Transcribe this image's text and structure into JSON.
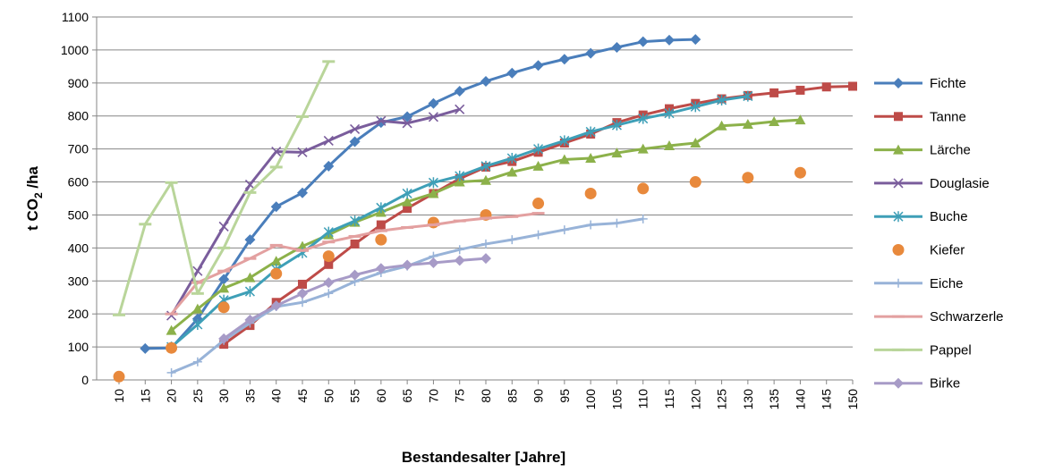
{
  "chart_data": {
    "type": "line",
    "title": "",
    "xlabel": "Bestandesalter [Jahre]",
    "ylabel_main": "t CO",
    "ylabel_sub": "2",
    "ylabel_rest": " /ha",
    "categories": [
      "10",
      "15",
      "20",
      "25",
      "30",
      "35",
      "40",
      "45",
      "50",
      "55",
      "60",
      "65",
      "70",
      "75",
      "80",
      "85",
      "90",
      "95",
      "100",
      "105",
      "110",
      "115",
      "120",
      "125",
      "130",
      "135",
      "140",
      "145",
      "150"
    ],
    "yticks": [
      0,
      100,
      200,
      300,
      400,
      500,
      600,
      700,
      800,
      900,
      1000,
      1100
    ],
    "ylim": [
      0,
      1100
    ],
    "grid": "horizontal",
    "legend_position": "right",
    "series": [
      {
        "name": "Fichte",
        "color": "#4a7ebb",
        "marker": "diamond",
        "x": [
          15,
          20,
          25,
          30,
          35,
          40,
          45,
          50,
          55,
          60,
          65,
          70,
          75,
          80,
          85,
          90,
          95,
          100,
          105,
          110,
          115,
          120
        ],
        "y": [
          95,
          97,
          185,
          305,
          425,
          525,
          567,
          648,
          722,
          780,
          798,
          838,
          875,
          905,
          930,
          953,
          972,
          990,
          1008,
          1025,
          1030,
          1032
        ]
      },
      {
        "name": "Tanne",
        "color": "#be4b48",
        "marker": "square",
        "x": [
          30,
          35,
          40,
          45,
          50,
          55,
          60,
          65,
          70,
          75,
          80,
          85,
          90,
          95,
          100,
          105,
          110,
          115,
          120,
          125,
          130,
          135,
          140,
          145,
          150
        ],
        "y": [
          108,
          165,
          235,
          290,
          350,
          412,
          470,
          520,
          565,
          610,
          645,
          662,
          690,
          718,
          745,
          780,
          803,
          822,
          838,
          852,
          862,
          870,
          878,
          888,
          890
        ]
      },
      {
        "name": "Lärche",
        "color": "#8cb14a",
        "marker": "triangle",
        "x": [
          20,
          25,
          30,
          35,
          40,
          45,
          50,
          55,
          60,
          65,
          70,
          75,
          80,
          85,
          90,
          95,
          100,
          105,
          110,
          115,
          120,
          125,
          130,
          135,
          140
        ],
        "y": [
          150,
          215,
          278,
          310,
          360,
          405,
          440,
          478,
          508,
          540,
          565,
          600,
          605,
          630,
          648,
          668,
          672,
          688,
          700,
          710,
          718,
          770,
          775,
          783,
          788
        ]
      },
      {
        "name": "Douglasie",
        "color": "#7a5d9c",
        "marker": "x",
        "x": [
          20,
          25,
          30,
          35,
          40,
          45,
          50,
          55,
          60,
          65,
          70,
          75
        ],
        "y": [
          195,
          330,
          465,
          592,
          692,
          690,
          725,
          760,
          785,
          778,
          797,
          820
        ]
      },
      {
        "name": "Buche",
        "color": "#3e9fb7",
        "marker": "star",
        "x": [
          20,
          25,
          30,
          35,
          40,
          45,
          50,
          55,
          60,
          65,
          70,
          75,
          80,
          85,
          90,
          95,
          100,
          105,
          110,
          115,
          120,
          125,
          130
        ],
        "y": [
          100,
          168,
          242,
          268,
          335,
          385,
          448,
          482,
          522,
          565,
          598,
          618,
          648,
          672,
          700,
          725,
          752,
          772,
          792,
          808,
          828,
          848,
          860
        ]
      },
      {
        "name": "Kiefer",
        "color": "#e8893c",
        "marker": "circle",
        "line": false,
        "x": [
          10,
          20,
          30,
          40,
          50,
          60,
          70,
          80,
          90,
          100,
          110,
          120,
          130,
          140
        ],
        "y": [
          10,
          97,
          220,
          322,
          375,
          425,
          477,
          500,
          535,
          565,
          580,
          600,
          613,
          628
        ]
      },
      {
        "name": "Eiche",
        "color": "#98b3d8",
        "marker": "plus",
        "x": [
          20,
          25,
          30,
          35,
          40,
          45,
          50,
          55,
          60,
          65,
          70,
          75,
          80,
          85,
          90,
          95,
          100,
          105,
          110
        ],
        "y": [
          22,
          55,
          120,
          172,
          222,
          235,
          262,
          298,
          325,
          345,
          375,
          395,
          412,
          425,
          440,
          455,
          470,
          475,
          488
        ]
      },
      {
        "name": "Schwarzerle",
        "color": "#e3a0a0",
        "marker": "dash",
        "x": [
          20,
          25,
          30,
          35,
          40,
          45,
          50,
          55,
          60,
          65,
          70,
          75,
          80,
          85,
          90
        ],
        "y": [
          200,
          295,
          330,
          368,
          408,
          392,
          418,
          435,
          452,
          462,
          470,
          482,
          490,
          495,
          505
        ]
      },
      {
        "name": "Pappel",
        "color": "#b9d59a",
        "marker": "dash",
        "x": [
          10,
          15,
          20,
          25,
          30,
          35,
          40,
          45,
          50
        ],
        "y": [
          197,
          472,
          598,
          262,
          400,
          568,
          645,
          798,
          965
        ]
      },
      {
        "name": "Birke",
        "color": "#a79bc7",
        "marker": "diamond",
        "x": [
          30,
          35,
          40,
          45,
          50,
          55,
          60,
          65,
          70,
          75,
          80
        ],
        "y": [
          125,
          182,
          225,
          262,
          295,
          318,
          338,
          348,
          355,
          362,
          368
        ]
      }
    ]
  }
}
